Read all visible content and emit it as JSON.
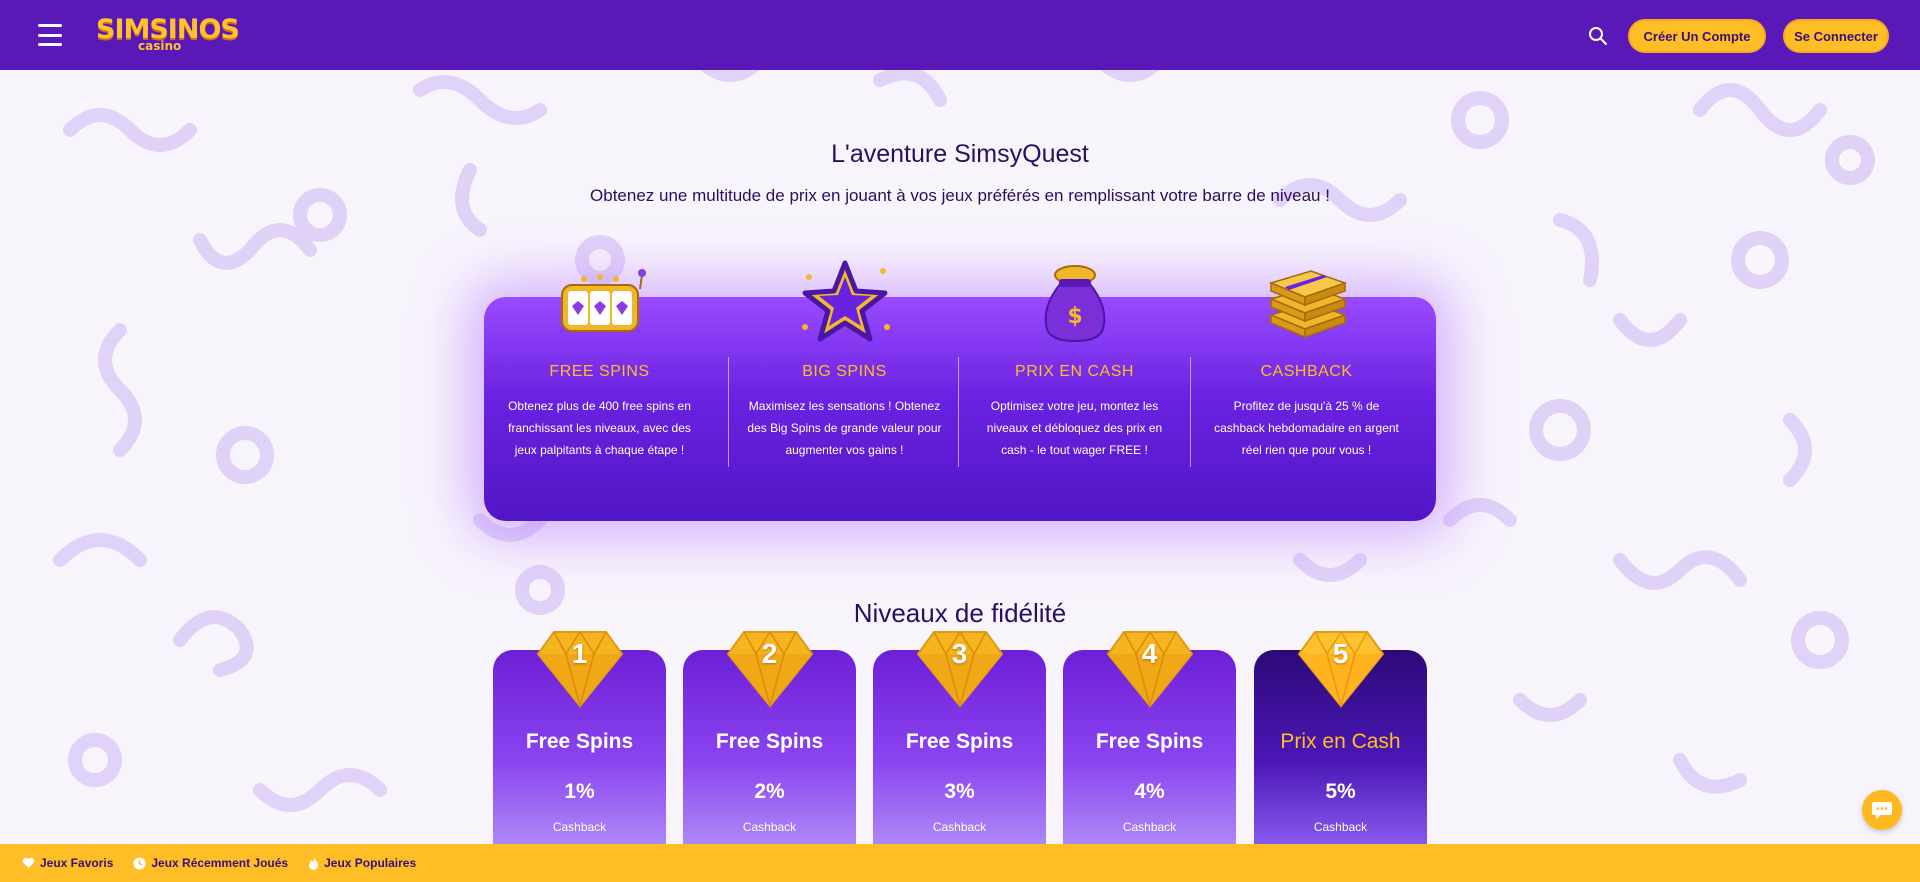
{
  "header": {
    "logo_main": "SIMSINOS",
    "logo_sub": "casino",
    "register_label": "Créer Un Compte",
    "login_label": "Se Connecter"
  },
  "quest": {
    "title": "L'aventure SimsyQuest",
    "subtitle": "Obtenez une multitude de prix en jouant à vos jeux préférés en remplissant votre barre de niveau !",
    "features": [
      {
        "icon": "slot-machine-icon",
        "title": "FREE SPINS",
        "text": "Obtenez plus de 400 free spins en franchissant les niveaux, avec des jeux palpitants à chaque étape !"
      },
      {
        "icon": "star-icon",
        "title": "BIG SPINS",
        "text": "Maximisez les sensations ! Obtenez des Big Spins de grande valeur pour augmenter vos gains !"
      },
      {
        "icon": "money-bag-icon",
        "title": "PRIX EN CASH",
        "text": "Optimisez votre jeu, montez les niveaux et débloquez des prix en cash - le tout wager FREE !"
      },
      {
        "icon": "cash-stack-icon",
        "title": "CASHBACK",
        "text": "Profitez de jusqu'à 25 % de cashback hebdomadaire en argent réel rien que pour vous !"
      }
    ]
  },
  "loyalty": {
    "title": "Niveaux de fidélité",
    "levels": [
      {
        "number": "1",
        "prize": "Free Spins",
        "percent": "1%",
        "label": "Cashback"
      },
      {
        "number": "2",
        "prize": "Free Spins",
        "percent": "2%",
        "label": "Cashback"
      },
      {
        "number": "3",
        "prize": "Free Spins",
        "percent": "3%",
        "label": "Cashback"
      },
      {
        "number": "4",
        "prize": "Free Spins",
        "percent": "4%",
        "label": "Cashback"
      },
      {
        "number": "5",
        "prize": "Prix en Cash",
        "percent": "5%",
        "label": "Cashback"
      }
    ]
  },
  "bottom_bar": {
    "favorites": "Jeux Favoris",
    "recent": "Jeux Récemment Joués",
    "popular": "Jeux Populaires"
  },
  "colors": {
    "header": "#5a18b8",
    "accent": "#ffbe25",
    "panel": "#6a22e0",
    "text_dark": "#2b0f5e"
  }
}
